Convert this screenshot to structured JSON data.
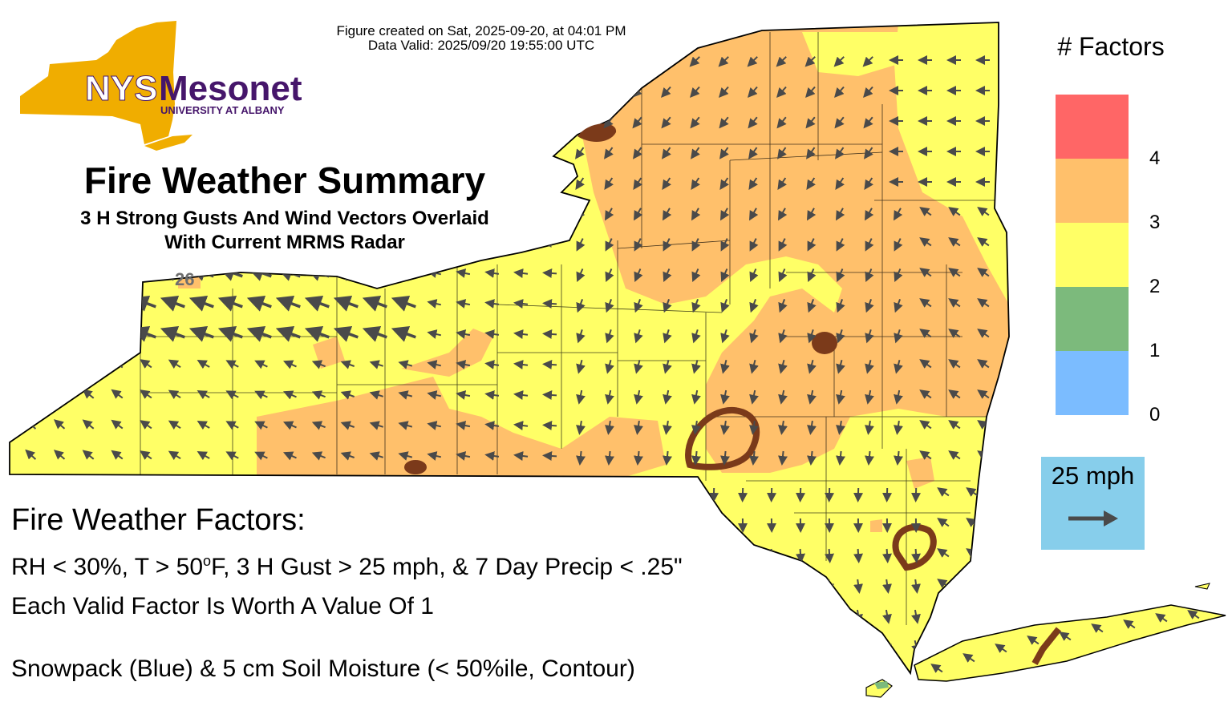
{
  "meta": {
    "created": "Figure created on Sat, 2025-09-20, at 04:01 PM",
    "valid": "Data Valid: 2025/09/20 19:55:00 UTC"
  },
  "logo": {
    "nys": "NYS",
    "mesonet": "Mesonet",
    "university": "UNIVERSITY AT ALBANY"
  },
  "title": "Fire Weather Summary",
  "subtitle_line1": "3 H Strong Gusts And Wind Vectors Overlaid",
  "subtitle_line2": "With Current MRMS Radar",
  "station_label": "26",
  "legend": {
    "title": "# Factors",
    "colors": [
      {
        "value": "4",
        "color": "#ff6666"
      },
      {
        "value": "3",
        "color": "#ffc06b"
      },
      {
        "value": "2",
        "color": "#ffff66"
      },
      {
        "value": "1",
        "color": "#7cba7c"
      },
      {
        "value": "0",
        "color": "#7bbcff"
      }
    ],
    "ticks": [
      "4",
      "3",
      "2",
      "1",
      "0"
    ]
  },
  "scale": {
    "label": "25 mph",
    "arrow_color": "#4a4a4a"
  },
  "factors": {
    "heading": "Fire Weather Factors:",
    "criteria_pre": "RH < 30%, T > 50",
    "criteria_sup": "o",
    "criteria_post": "F, 3 H Gust > 25 mph, & 7 Day Precip < .25\"",
    "worth": "Each Valid Factor Is Worth A Value Of 1",
    "snow_soil": "Snowpack (Blue) & 5 cm Soil Moisture (< 50%ile, Contour)"
  },
  "colors": {
    "factor2": "#ffff66",
    "factor3": "#ffc06b",
    "soil_contour": "#7b3a1a",
    "logo_gold": "#f0ad00",
    "logo_purple": "#46166b",
    "outline": "#000000"
  }
}
